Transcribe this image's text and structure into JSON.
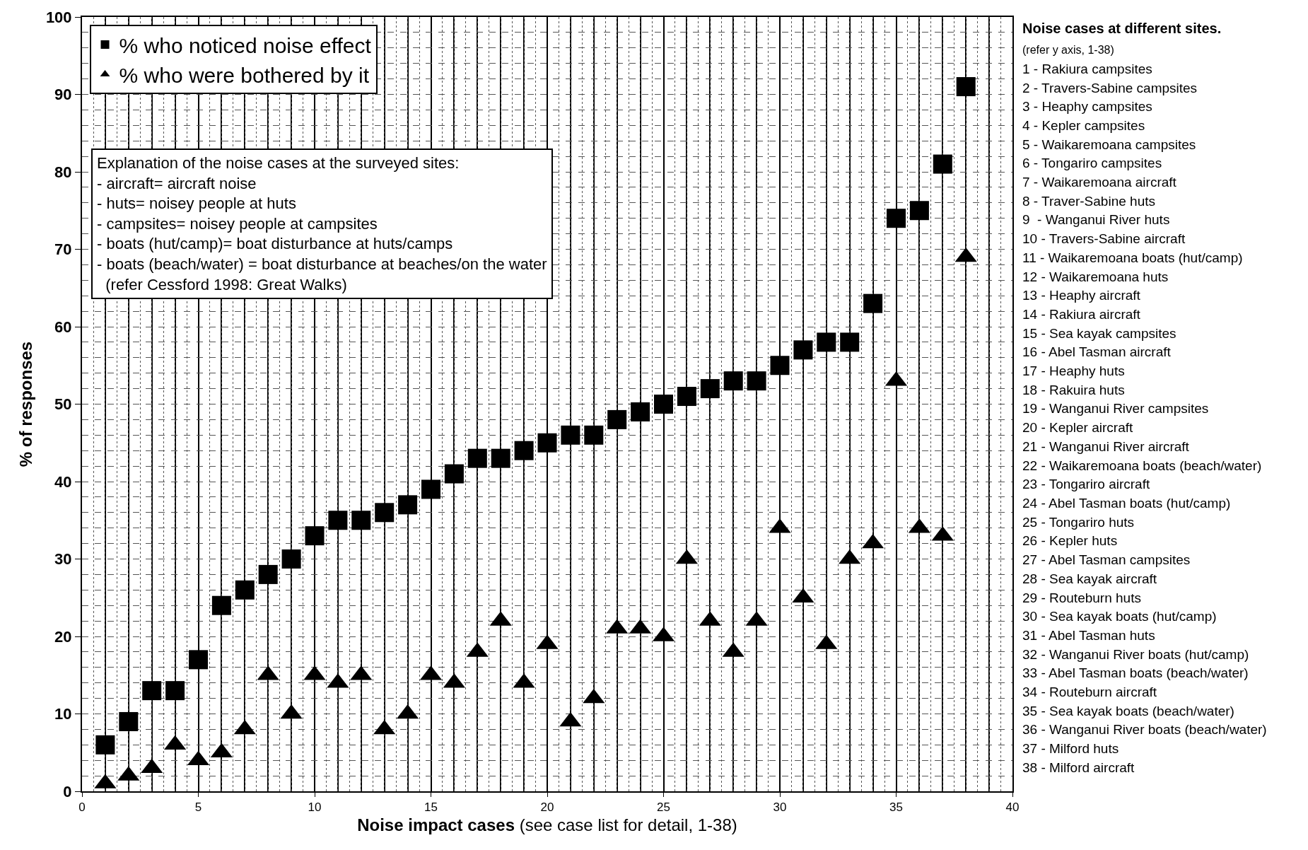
{
  "chart_data": {
    "type": "scatter",
    "xlabel": "Noise impact cases (see case list for detail, 1-38)",
    "ylabel": "% of responses",
    "x": [
      1,
      2,
      3,
      4,
      5,
      6,
      7,
      8,
      9,
      10,
      11,
      12,
      13,
      14,
      15,
      16,
      17,
      18,
      19,
      20,
      21,
      22,
      23,
      24,
      25,
      26,
      27,
      28,
      29,
      30,
      31,
      32,
      33,
      34,
      35,
      36,
      37,
      38
    ],
    "series": [
      {
        "name": "% who noticed noise effect",
        "color": "#000000",
        "marker": "square",
        "values": [
          6,
          9,
          13,
          13,
          17,
          24,
          26,
          28,
          30,
          33,
          35,
          35,
          36,
          37,
          39,
          41,
          43,
          43,
          44,
          45,
          46,
          46,
          48,
          49,
          50,
          51,
          52,
          53,
          53,
          55,
          57,
          58,
          58,
          63,
          74,
          75,
          81,
          91
        ]
      },
      {
        "name": "% who were bothered by it",
        "color": "#000000",
        "marker": "triangle",
        "values": [
          1,
          2,
          3,
          6,
          4,
          5,
          8,
          15,
          10,
          15,
          14,
          15,
          8,
          10,
          15,
          14,
          18,
          22,
          14,
          19,
          9,
          12,
          21,
          21,
          20,
          30,
          22,
          18,
          22,
          34,
          25,
          19,
          30,
          32,
          53,
          34,
          33,
          69
        ]
      }
    ],
    "xlim": [
      0,
      40
    ],
    "xticks": [
      0,
      5,
      10,
      15,
      20,
      25,
      30,
      35,
      40
    ],
    "ylim": [
      0,
      100
    ],
    "yticks": [
      0,
      10,
      20,
      30,
      40,
      50,
      60,
      70,
      80,
      90,
      100
    ],
    "grid": true,
    "legend": "top left",
    "annotations": [
      "Explanation of the noise cases at the surveyed sites:\n- aircraft= aircraft noise\n- huts= noisey people at huts\n- campsites= noisey people at campsites\n- boats (hut/camp)= boat disturbance at huts/camps\n- boats (beach/water) = boat disturbance at beaches/on the water\n  (refer Cessford 1998: Great Walks)",
      "Noise cases at different sites.",
      "(refer y axis, 1-38)",
      "1 - Rakiura campsites",
      "2 - Travers-Sabine campsites",
      "3 - Heaphy campsites",
      "4 - Kepler campsites",
      "5 - Waikaremoana campsites",
      "6 - Tongariro campsites",
      "7 - Waikaremoana aircraft",
      "8 - Traver-Sabine huts",
      "9  - Wanganui River huts",
      "10 - Travers-Sabine aircraft",
      "11 - Waikaremoana boats (hut/camp)",
      "12 - Waikaremoana huts",
      "13 - Heaphy aircraft",
      "14 - Rakiura aircraft",
      "15 - Sea kayak campsites",
      "16 - Abel Tasman aircraft",
      "17 - Heaphy huts",
      "18 - Rakuira huts",
      "19 - Wanganui River campsites",
      "20 - Kepler aircraft",
      "21 - Wanganui River aircraft",
      "22 - Waikaremoana boats (beach/water)",
      "23 - Tongariro aircraft",
      "24 - Abel Tasman boats (hut/camp)",
      "25 - Tongariro huts",
      "26 - Kepler huts",
      "27 - Abel Tasman campsites",
      "28 - Sea kayak aircraft",
      "29 - Routeburn huts",
      "30 - Sea kayak boats (hut/camp)",
      "31 - Abel Tasman huts",
      "32 - Wanganui River boats (hut/camp)",
      "33 - Abel Tasman boats (beach/water)",
      "34 - Routeburn aircraft",
      "35 - Sea kayak boats (beach/water)",
      "36 - Wanganui River boats (beach/water)",
      "37 - Milford huts",
      "38 - Milford aircraft"
    ]
  }
}
